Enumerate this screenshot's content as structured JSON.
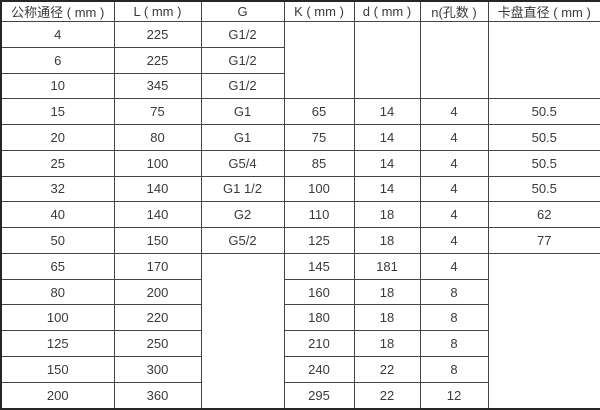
{
  "table": {
    "headers": [
      "公称通径 ( mm )",
      "L ( mm )",
      "G",
      "K ( mm )",
      "d ( mm )",
      "n(孔数 )",
      "卡盘直径 ( mm )"
    ],
    "rows": [
      {
        "cells": [
          {
            "text": "4"
          },
          {
            "text": "225"
          },
          {
            "text": "G1/2"
          },
          {
            "text": "",
            "rowspan": 3
          },
          {
            "text": "",
            "rowspan": 3
          },
          {
            "text": "",
            "rowspan": 3
          },
          {
            "text": "",
            "rowspan": 3
          }
        ]
      },
      {
        "cells": [
          {
            "text": "6"
          },
          {
            "text": "225"
          },
          {
            "text": "G1/2"
          }
        ]
      },
      {
        "cells": [
          {
            "text": "10"
          },
          {
            "text": "345"
          },
          {
            "text": "G1/2"
          }
        ]
      },
      {
        "cells": [
          {
            "text": "15"
          },
          {
            "text": "75"
          },
          {
            "text": "G1"
          },
          {
            "text": "65"
          },
          {
            "text": "14"
          },
          {
            "text": "4"
          },
          {
            "text": "50.5"
          }
        ]
      },
      {
        "cells": [
          {
            "text": "20"
          },
          {
            "text": "80"
          },
          {
            "text": "G1"
          },
          {
            "text": "75"
          },
          {
            "text": "14"
          },
          {
            "text": "4"
          },
          {
            "text": "50.5"
          }
        ]
      },
      {
        "cells": [
          {
            "text": "25"
          },
          {
            "text": "100"
          },
          {
            "text": "G5/4"
          },
          {
            "text": "85"
          },
          {
            "text": "14"
          },
          {
            "text": "4"
          },
          {
            "text": "50.5"
          }
        ]
      },
      {
        "cells": [
          {
            "text": "32"
          },
          {
            "text": "140"
          },
          {
            "text": "G1 1/2"
          },
          {
            "text": "100"
          },
          {
            "text": "14"
          },
          {
            "text": "4"
          },
          {
            "text": "50.5"
          }
        ]
      },
      {
        "cells": [
          {
            "text": "40"
          },
          {
            "text": "140"
          },
          {
            "text": "G2"
          },
          {
            "text": "110"
          },
          {
            "text": "18"
          },
          {
            "text": "4"
          },
          {
            "text": "62"
          }
        ]
      },
      {
        "cells": [
          {
            "text": "50"
          },
          {
            "text": "150"
          },
          {
            "text": "G5/2"
          },
          {
            "text": "125"
          },
          {
            "text": "18"
          },
          {
            "text": "4"
          },
          {
            "text": "77"
          }
        ]
      },
      {
        "cells": [
          {
            "text": "65"
          },
          {
            "text": "170"
          },
          {
            "text": "",
            "rowspan": 6
          },
          {
            "text": "145"
          },
          {
            "text": "181"
          },
          {
            "text": "4"
          },
          {
            "text": "",
            "rowspan": 6
          }
        ]
      },
      {
        "cells": [
          {
            "text": "80"
          },
          {
            "text": "200"
          },
          {
            "text": "160"
          },
          {
            "text": "18"
          },
          {
            "text": "8"
          }
        ]
      },
      {
        "cells": [
          {
            "text": "100"
          },
          {
            "text": "220"
          },
          {
            "text": "180"
          },
          {
            "text": "18"
          },
          {
            "text": "8"
          }
        ]
      },
      {
        "cells": [
          {
            "text": "125"
          },
          {
            "text": "250"
          },
          {
            "text": "210"
          },
          {
            "text": "18"
          },
          {
            "text": "8"
          }
        ]
      },
      {
        "cells": [
          {
            "text": "150"
          },
          {
            "text": "300"
          },
          {
            "text": "240"
          },
          {
            "text": "22"
          },
          {
            "text": "8"
          }
        ]
      },
      {
        "cells": [
          {
            "text": "200"
          },
          {
            "text": "360"
          },
          {
            "text": "295"
          },
          {
            "text": "22"
          },
          {
            "text": "12"
          }
        ]
      }
    ]
  },
  "chart_data": {
    "type": "table",
    "title": "",
    "columns": [
      "公称通径 ( mm )",
      "L ( mm )",
      "G",
      "K ( mm )",
      "d ( mm )",
      "n(孔数 )",
      "卡盘直径 ( mm )"
    ],
    "rows": [
      [
        "4",
        "225",
        "G1/2",
        "",
        "",
        "",
        ""
      ],
      [
        "6",
        "225",
        "G1/2",
        "",
        "",
        "",
        ""
      ],
      [
        "10",
        "345",
        "G1/2",
        "",
        "",
        "",
        ""
      ],
      [
        "15",
        "75",
        "G1",
        "65",
        "14",
        "4",
        "50.5"
      ],
      [
        "20",
        "80",
        "G1",
        "75",
        "14",
        "4",
        "50.5"
      ],
      [
        "25",
        "100",
        "G5/4",
        "85",
        "14",
        "4",
        "50.5"
      ],
      [
        "32",
        "140",
        "G1 1/2",
        "100",
        "14",
        "4",
        "50.5"
      ],
      [
        "40",
        "140",
        "G2",
        "110",
        "18",
        "4",
        "62"
      ],
      [
        "50",
        "150",
        "G5/2",
        "125",
        "18",
        "4",
        "77"
      ],
      [
        "65",
        "170",
        "",
        "145",
        "181",
        "4",
        ""
      ],
      [
        "80",
        "200",
        "",
        "160",
        "18",
        "8",
        ""
      ],
      [
        "100",
        "220",
        "",
        "180",
        "18",
        "8",
        ""
      ],
      [
        "125",
        "250",
        "",
        "210",
        "18",
        "8",
        ""
      ],
      [
        "150",
        "300",
        "",
        "240",
        "22",
        "8",
        ""
      ],
      [
        "200",
        "360",
        "",
        "295",
        "22",
        "12",
        ""
      ]
    ],
    "merged_cells": [
      {
        "cols": [
          "K ( mm )",
          "d ( mm )",
          "n(孔数 )",
          "卡盘直径 ( mm )"
        ],
        "row_start": 0,
        "row_span": 3,
        "value": ""
      },
      {
        "cols": [
          "G"
        ],
        "row_start": 9,
        "row_span": 6,
        "value": ""
      },
      {
        "cols": [
          "卡盘直径 ( mm )"
        ],
        "row_start": 9,
        "row_span": 6,
        "value": ""
      }
    ]
  },
  "colors": {
    "background": "#ffffff",
    "inner_border": "#454545",
    "outer_border": "#262626",
    "text": "#3a3a3a"
  }
}
